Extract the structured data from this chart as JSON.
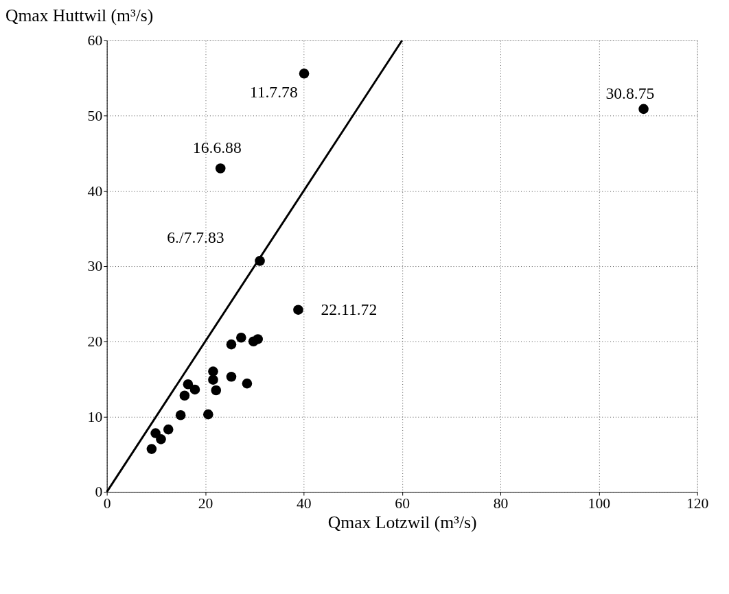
{
  "chart_data": {
    "type": "scatter",
    "xlabel": "Qmax Lotzwil (m³/s)",
    "ylabel": "Qmax Huttwil (m³/s)",
    "xlim": [
      0,
      120
    ],
    "ylim": [
      0,
      60
    ],
    "xticks": [
      0,
      20,
      40,
      60,
      80,
      100,
      120
    ],
    "yticks": [
      0,
      10,
      20,
      30,
      40,
      50,
      60
    ],
    "grid": true,
    "series": [
      {
        "color": "#000000",
        "marker": "circle",
        "x": [
          9.1,
          9.9,
          11.0,
          12.5,
          15.0,
          15.8,
          16.5,
          17.9,
          20.6,
          21.6,
          21.6,
          22.2,
          25.3,
          27.3,
          25.3,
          28.5,
          29.8,
          30.7,
          31.1,
          38.9,
          23.1,
          40.1,
          109.1
        ],
        "values": [
          5.7,
          7.8,
          7.0,
          8.3,
          10.2,
          12.8,
          14.3,
          13.6,
          10.3,
          16.0,
          14.9,
          13.5,
          19.6,
          20.5,
          15.3,
          14.4,
          20.0,
          20.3,
          30.7,
          24.2,
          43.0,
          55.6,
          50.9
        ]
      },
      {
        "type": "line",
        "color": "#000000",
        "marker": "none",
        "x": [
          0,
          60
        ],
        "values": [
          0,
          60
        ]
      }
    ],
    "annotations": [
      {
        "text": "11.7.78",
        "x": 40.1,
        "y": 55.6
      },
      {
        "text": "30.8.75",
        "x": 109.1,
        "y": 50.9
      },
      {
        "text": "16.6.88",
        "x": 23.1,
        "y": 43.0
      },
      {
        "text": "6./7.7.83",
        "x": 31.1,
        "y": 30.7
      },
      {
        "text": "22.11.72",
        "x": 38.9,
        "y": 24.2
      }
    ]
  }
}
